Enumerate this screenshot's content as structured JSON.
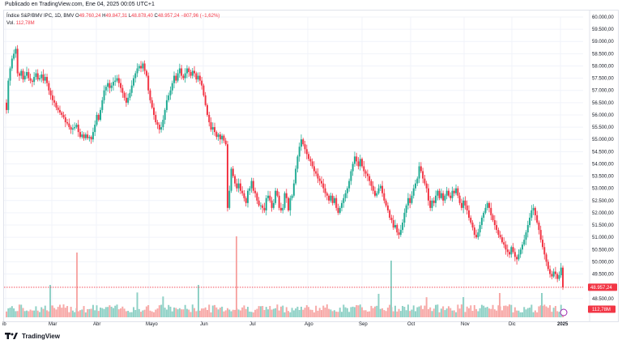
{
  "published": "Publicado en TradingView.com, Ene 04, 2025 00:05 UTC+1",
  "legend": {
    "symbol": "Índice S&P/BMV IPC, 1D, BMV",
    "o_label": "O",
    "o_value": "49.760,24",
    "h_label": "H",
    "h_value": "49.847,31",
    "l_label": "L",
    "l_value": "48.878,40",
    "c_label": "C",
    "c_value": "48.957,24",
    "change": "−807,96 (−1,62%)",
    "vol_label": "Vol.",
    "vol_value": "112,78M"
  },
  "footer": {
    "brand": "TradingView"
  },
  "colors": {
    "up": "#22ab94",
    "down": "#f23645",
    "up_vol": "#8fd1c6",
    "down_vol": "#f7a9a7",
    "grid": "#f0f3fa",
    "text": "#131722"
  },
  "chart_data": {
    "type": "candlestick",
    "y_ticks": [
      "60.000,00",
      "59.500,00",
      "59.000,00",
      "58.500,00",
      "58.000,00",
      "57.500,00",
      "57.000,00",
      "56.500,00",
      "56.000,00",
      "55.500,00",
      "55.000,00",
      "54.500,00",
      "54.000,00",
      "53.500,00",
      "53.000,00",
      "52.500,00",
      "52.000,00",
      "51.500,00",
      "51.000,00",
      "50.500,00",
      "50.000,00",
      "49.500,00",
      "48.500,00"
    ],
    "x_ticks": [
      "ib",
      "Mar",
      "Abr",
      "Mayo",
      "Jun",
      "Jul",
      "Ago",
      "Sep",
      "Oct",
      "Nov",
      "Dic",
      "2025"
    ],
    "ylim": [
      48300,
      60050
    ],
    "last_price": 48957.24,
    "last_price_label": "48.957,24",
    "last_volume_label": "112,78M",
    "close": [
      56200,
      57400,
      57900,
      58300,
      58500,
      58700,
      57700,
      57600,
      57800,
      57450,
      57600,
      57750,
      57500,
      57400,
      57350,
      57550,
      57700,
      57450,
      57500,
      57650,
      57400,
      57550,
      57300,
      57000,
      56800,
      56600,
      56500,
      56300,
      56200,
      56100,
      56000,
      55900,
      55700,
      55650,
      55500,
      55400,
      55450,
      55500,
      55600,
      55300,
      55100,
      55200,
      55050,
      55200,
      55050,
      55100,
      55000,
      55300,
      55600,
      56000,
      55800,
      56200,
      56600,
      57000,
      57150,
      57300,
      57100,
      57200,
      57350,
      57400,
      57500,
      57300,
      57100,
      56900,
      56700,
      56500,
      56700,
      56900,
      57200,
      57500,
      57700,
      57900,
      58000,
      57900,
      58100,
      57800,
      57600,
      57000,
      56600,
      56300,
      56000,
      55700,
      55600,
      55400,
      55500,
      55800,
      56200,
      56600,
      56800,
      57000,
      57300,
      57600,
      57400,
      57700,
      57900,
      57600,
      57500,
      57700,
      57900,
      57750,
      57600,
      57800,
      57700,
      57450,
      57600,
      57400,
      57200,
      56800,
      56400,
      56000,
      55700,
      55400,
      55500,
      55300,
      55100,
      55200,
      55000,
      55150,
      54950,
      54800,
      52200,
      52900,
      53800,
      53500,
      53200,
      53000,
      53200,
      52900,
      52800,
      52600,
      52400,
      52900,
      53000,
      53300,
      52900,
      52800,
      52500,
      52300,
      52300,
      52200,
      52100,
      52600,
      52700,
      52500,
      52200,
      52400,
      52900,
      52700,
      52200,
      52100,
      52200,
      52800,
      52600,
      52100,
      52600,
      52700,
      53200,
      53800,
      54300,
      54700,
      55000,
      54800,
      54600,
      54400,
      54200,
      54100,
      53900,
      53700,
      53600,
      53400,
      53300,
      53200,
      53000,
      52800,
      52700,
      52500,
      52700,
      52400,
      52600,
      52200,
      52000,
      52200,
      52400,
      52600,
      52800,
      53000,
      53300,
      53700,
      54000,
      54300,
      54100,
      53900,
      54200,
      53900,
      53700,
      53600,
      53500,
      53300,
      53100,
      52900,
      52700,
      52800,
      53000,
      53100,
      52800,
      52500,
      52300,
      52100,
      51800,
      51700,
      51400,
      51500,
      51200,
      51100,
      51300,
      51600,
      52000,
      52300,
      52600,
      52400,
      52700,
      53000,
      53200,
      53400,
      53900,
      53700,
      53400,
      53200,
      53000,
      52500,
      52200,
      52500,
      52400,
      52700,
      52900,
      52600,
      52800,
      52500,
      52700,
      52900,
      52700,
      52600,
      52900,
      52800,
      53000,
      52700,
      52400,
      52200,
      52500,
      52300,
      52100,
      51800,
      51600,
      51400,
      51100,
      51000,
      51200,
      51500,
      51800,
      52000,
      52200,
      52400,
      52200,
      51900,
      51700,
      51500,
      51300,
      51100,
      51000,
      50800,
      50700,
      50500,
      50400,
      50300,
      50600,
      50400,
      50200,
      50100,
      50300,
      50500,
      50700,
      50900,
      51200,
      51500,
      51800,
      52100,
      52200,
      51900,
      51600,
      51300,
      50900,
      50600,
      50300,
      50000,
      49700,
      49500,
      49400,
      49600,
      49500,
      49300,
      49450,
      49760,
      48957
    ],
    "volume_scale": "relative"
  }
}
